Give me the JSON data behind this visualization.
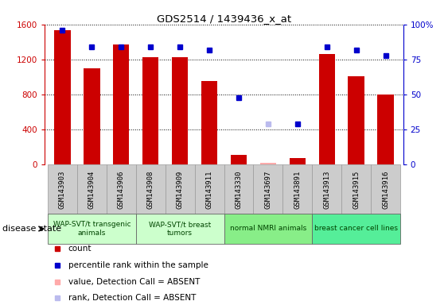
{
  "title": "GDS2514 / 1439436_x_at",
  "samples": [
    "GSM143903",
    "GSM143904",
    "GSM143906",
    "GSM143908",
    "GSM143909",
    "GSM143911",
    "GSM143330",
    "GSM143697",
    "GSM143891",
    "GSM143913",
    "GSM143915",
    "GSM143916"
  ],
  "count_values": [
    1530,
    1100,
    1370,
    1230,
    1230,
    950,
    110,
    20,
    80,
    1260,
    1010,
    800
  ],
  "count_absent": [
    false,
    false,
    false,
    false,
    false,
    false,
    false,
    true,
    false,
    false,
    false,
    false
  ],
  "percentile_values": [
    96,
    84,
    84,
    84,
    84,
    82,
    48,
    29,
    29,
    84,
    82,
    78
  ],
  "percentile_absent": [
    false,
    false,
    false,
    false,
    false,
    false,
    false,
    true,
    false,
    false,
    false,
    false
  ],
  "bar_color_present": "#cc0000",
  "bar_color_absent": "#ffaaaa",
  "dot_color_present": "#0000cc",
  "dot_color_absent": "#bbbbee",
  "ylim_left": [
    0,
    1600
  ],
  "ylim_right": [
    0,
    100
  ],
  "yticks_left": [
    0,
    400,
    800,
    1200,
    1600
  ],
  "yticks_right": [
    0,
    25,
    50,
    75,
    100
  ],
  "groups": [
    {
      "label": "WAP-SVT/t transgenic\nanimals",
      "start": 0,
      "end": 3,
      "color": "#ccffcc"
    },
    {
      "label": "WAP-SVT/t breast\ntumors",
      "start": 3,
      "end": 6,
      "color": "#ccffcc"
    },
    {
      "label": "normal NMRI animals",
      "start": 6,
      "end": 9,
      "color": "#88ee88"
    },
    {
      "label": "breast cancer cell lines",
      "start": 9,
      "end": 12,
      "color": "#55ee99"
    }
  ],
  "disease_state_label": "disease state",
  "legend_items": [
    {
      "label": "count",
      "color": "#cc0000"
    },
    {
      "label": "percentile rank within the sample",
      "color": "#0000cc"
    },
    {
      "label": "value, Detection Call = ABSENT",
      "color": "#ffaaaa"
    },
    {
      "label": "rank, Detection Call = ABSENT",
      "color": "#bbbbee"
    }
  ],
  "bg_color": "white",
  "tick_label_bg": "#cccccc",
  "tick_label_border": "#999999"
}
